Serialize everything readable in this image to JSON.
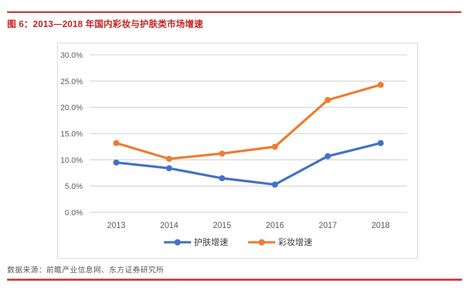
{
  "figure": {
    "title": "图 6：2013—2018 年国内彩妆与护肤类市场增速",
    "source": "数据来源：前瞻产业信息网、东方证券研究所"
  },
  "colors": {
    "accent_red": "#C42222",
    "grid": "#D9D9D9",
    "axis_text": "#595959",
    "legend_text": "#404040",
    "skincare_blue": "#4472C4",
    "makeup_orange": "#ED7D31"
  },
  "chart_data": {
    "type": "line",
    "title": "",
    "categories": [
      "2013",
      "2014",
      "2015",
      "2016",
      "2017",
      "2018"
    ],
    "series": [
      {
        "name": "护肤增速",
        "color": "#4472C4",
        "values": [
          9.5,
          8.4,
          6.5,
          5.3,
          10.7,
          13.2
        ]
      },
      {
        "name": "彩妆增速",
        "color": "#ED7D31",
        "values": [
          13.2,
          10.2,
          11.2,
          12.5,
          21.4,
          24.3
        ]
      }
    ],
    "xlabel": "",
    "ylabel": "",
    "ylim": [
      0,
      30
    ],
    "y_step": 5,
    "y_tick_labels": [
      "0.0%",
      "5.0%",
      "10.0%",
      "15.0%",
      "20.0%",
      "25.0%",
      "30.0%"
    ],
    "grid": true,
    "legend_position": "bottom",
    "marker": "circle"
  }
}
